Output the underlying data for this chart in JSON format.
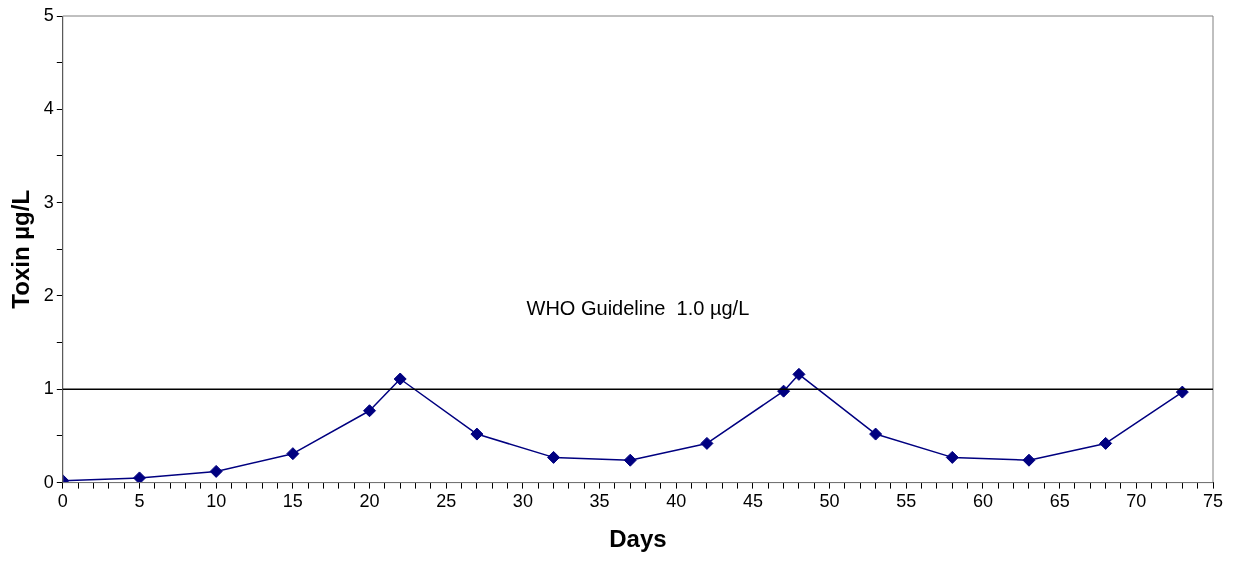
{
  "chart_data": {
    "type": "line",
    "xlabel": "Days",
    "ylabel": "Toxin µg/L",
    "x": [
      0,
      5,
      10,
      15,
      20,
      22,
      27,
      32,
      37,
      42,
      47,
      48,
      53,
      58,
      63,
      68,
      73
    ],
    "series": [
      {
        "color": "#000080",
        "values": [
          0.02,
          0.05,
          0.12,
          0.31,
          0.77,
          1.11,
          0.52,
          0.27,
          0.24,
          0.42,
          0.98,
          1.16,
          0.52,
          0.27,
          0.24,
          0.42,
          0.97
        ]
      }
    ],
    "xlim": [
      0,
      75
    ],
    "xticks": [
      0,
      {
        "value": 1,
        "label": null
      },
      {
        "value": 2,
        "label": null
      },
      {
        "value": 3,
        "label": null
      },
      {
        "value": 4,
        "label": null
      },
      5,
      {
        "value": 6,
        "label": null
      },
      {
        "value": 7,
        "label": null
      },
      {
        "value": 8,
        "label": null
      },
      {
        "value": 9,
        "label": null
      },
      10,
      {
        "value": 11,
        "label": null
      },
      {
        "value": 12,
        "label": null
      },
      {
        "value": 13,
        "label": null
      },
      {
        "value": 14,
        "label": null
      },
      15,
      {
        "value": 16,
        "label": null
      },
      {
        "value": 17,
        "label": null
      },
      {
        "value": 18,
        "label": null
      },
      {
        "value": 19,
        "label": null
      },
      20,
      {
        "value": 21,
        "label": null
      },
      {
        "value": 22,
        "label": null
      },
      {
        "value": 23,
        "label": null
      },
      {
        "value": 24,
        "label": null
      },
      25,
      {
        "value": 26,
        "label": null
      },
      {
        "value": 27,
        "label": null
      },
      {
        "value": 28,
        "label": null
      },
      {
        "value": 29,
        "label": null
      },
      30,
      {
        "value": 31,
        "label": null
      },
      {
        "value": 32,
        "label": null
      },
      {
        "value": 33,
        "label": null
      },
      {
        "value": 34,
        "label": null
      },
      35,
      {
        "value": 36,
        "label": null
      },
      {
        "value": 37,
        "label": null
      },
      {
        "value": 38,
        "label": null
      },
      {
        "value": 39,
        "label": null
      },
      40,
      {
        "value": 41,
        "label": null
      },
      {
        "value": 42,
        "label": null
      },
      {
        "value": 43,
        "label": null
      },
      {
        "value": 44,
        "label": null
      },
      45,
      {
        "value": 46,
        "label": null
      },
      {
        "value": 47,
        "label": null
      },
      {
        "value": 48,
        "label": null
      },
      {
        "value": 49,
        "label": null
      },
      50,
      {
        "value": 51,
        "label": null
      },
      {
        "value": 52,
        "label": null
      },
      {
        "value": 53,
        "label": null
      },
      {
        "value": 54,
        "label": null
      },
      55,
      {
        "value": 56,
        "label": null
      },
      {
        "value": 57,
        "label": null
      },
      {
        "value": 58,
        "label": null
      },
      {
        "value": 59,
        "label": null
      },
      60,
      {
        "value": 61,
        "label": null
      },
      {
        "value": 62,
        "label": null
      },
      {
        "value": 63,
        "label": null
      },
      {
        "value": 64,
        "label": null
      },
      65,
      {
        "value": 66,
        "label": null
      },
      {
        "value": 67,
        "label": null
      },
      {
        "value": 68,
        "label": null
      },
      {
        "value": 69,
        "label": null
      },
      70,
      {
        "value": 71,
        "label": null
      },
      {
        "value": 72,
        "label": null
      },
      {
        "value": 73,
        "label": null
      },
      {
        "value": 74,
        "label": null
      },
      75
    ],
    "ylim": [
      0,
      5
    ],
    "yticks": [
      0,
      {
        "value": 0.5,
        "label": null
      },
      1,
      {
        "value": 1.5,
        "label": null
      },
      2,
      {
        "value": 2.5,
        "label": null
      },
      3,
      {
        "value": 3.5,
        "label": null
      },
      4,
      {
        "value": 4.5,
        "label": null
      },
      5
    ],
    "ref_lines": [
      {
        "axis": "y",
        "value": 1,
        "label": "WHO Guideline  1.0 µg/L",
        "color": "#000000"
      }
    ],
    "marker": "diamond",
    "line_style": "solid",
    "grid": false,
    "legend": false
  }
}
